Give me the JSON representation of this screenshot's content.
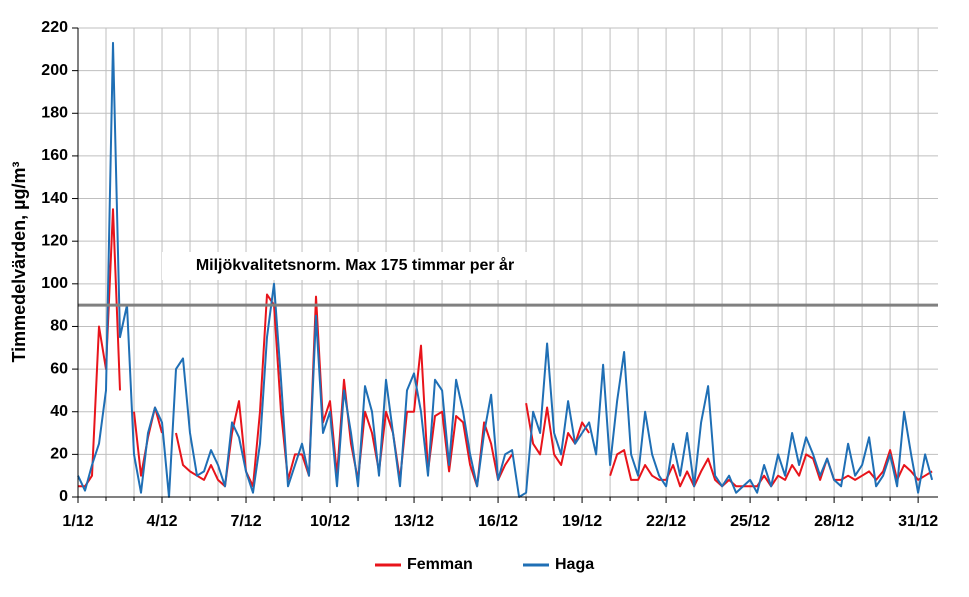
{
  "chart_data": {
    "type": "line",
    "ylabel": "Timmedelvärden, µg/m³",
    "annotation": {
      "text": "Miljökvalitetsnorm. Max 175 timmar per år",
      "value": 90,
      "color": "#808080"
    },
    "xlim": [
      1,
      31.71
    ],
    "ylim": [
      0,
      220
    ],
    "yticks": [
      0,
      20,
      40,
      60,
      80,
      100,
      120,
      140,
      160,
      180,
      200,
      220
    ],
    "xticks": [
      {
        "value": 1,
        "label": "1/12"
      },
      {
        "value": 4,
        "label": "4/12"
      },
      {
        "value": 7,
        "label": "7/12"
      },
      {
        "value": 10,
        "label": "10/12"
      },
      {
        "value": 13,
        "label": "13/12"
      },
      {
        "value": 16,
        "label": "16/12"
      },
      {
        "value": 19,
        "label": "19/12"
      },
      {
        "value": 22,
        "label": "22/12"
      },
      {
        "value": 25,
        "label": "25/12"
      },
      {
        "value": 28,
        "label": "28/12"
      },
      {
        "value": 31,
        "label": "31/12"
      }
    ],
    "xminorticks": [
      2,
      3,
      5,
      6,
      8,
      9,
      11,
      12,
      14,
      15,
      17,
      18,
      20,
      21,
      23,
      24,
      26,
      27,
      29,
      30
    ],
    "grid": true,
    "legend": "bottom",
    "x": [
      1,
      1.25,
      1.5,
      1.75,
      2,
      2.25,
      2.5,
      2.75,
      3,
      3.25,
      3.5,
      3.75,
      4,
      4.25,
      4.5,
      4.75,
      5,
      5.25,
      5.5,
      5.75,
      6,
      6.25,
      6.5,
      6.75,
      7,
      7.25,
      7.5,
      7.75,
      8,
      8.25,
      8.5,
      8.75,
      9,
      9.25,
      9.5,
      9.75,
      10,
      10.25,
      10.5,
      10.75,
      11,
      11.25,
      11.5,
      11.75,
      12,
      12.25,
      12.5,
      12.75,
      13,
      13.25,
      13.5,
      13.75,
      14,
      14.25,
      14.5,
      14.75,
      15,
      15.25,
      15.5,
      15.75,
      16,
      16.25,
      16.5,
      16.75,
      17,
      17.25,
      17.5,
      17.75,
      18,
      18.25,
      18.5,
      18.75,
      19,
      19.25,
      19.5,
      19.75,
      20,
      20.25,
      20.5,
      20.75,
      21,
      21.25,
      21.5,
      21.75,
      22,
      22.25,
      22.5,
      22.75,
      23,
      23.25,
      23.5,
      23.75,
      24,
      24.25,
      24.5,
      24.75,
      25,
      25.25,
      25.5,
      25.75,
      26,
      26.25,
      26.5,
      26.75,
      27,
      27.25,
      27.5,
      27.75,
      28,
      28.25,
      28.5,
      28.75,
      29,
      29.25,
      29.5,
      29.75,
      30,
      30.25,
      30.5,
      30.75,
      31,
      31.25,
      31.5
    ],
    "series": [
      {
        "name": "Femman",
        "color": "#e8141b",
        "values": [
          5,
          5,
          10,
          80,
          60,
          135,
          50,
          null,
          40,
          10,
          28,
          42,
          30,
          null,
          30,
          15,
          12,
          10,
          8,
          15,
          8,
          5,
          30,
          45,
          12,
          5,
          40,
          95,
          90,
          40,
          8,
          20,
          20,
          10,
          94,
          35,
          45,
          10,
          55,
          25,
          8,
          40,
          30,
          12,
          40,
          30,
          8,
          40,
          40,
          71,
          12,
          38,
          40,
          12,
          38,
          35,
          15,
          5,
          35,
          25,
          8,
          15,
          20,
          null,
          44,
          25,
          20,
          42,
          20,
          15,
          30,
          25,
          35,
          30,
          null,
          null,
          10,
          20,
          22,
          8,
          8,
          15,
          10,
          8,
          8,
          15,
          5,
          12,
          5,
          12,
          18,
          8,
          5,
          8,
          5,
          5,
          5,
          5,
          10,
          5,
          10,
          8,
          15,
          10,
          20,
          18,
          8,
          18,
          8,
          8,
          10,
          8,
          10,
          12,
          8,
          12,
          22,
          8,
          15,
          12,
          8,
          10,
          12
        ]
      },
      {
        "name": "Haga",
        "color": "#1f6fb5",
        "values": [
          10,
          3,
          15,
          25,
          50,
          213,
          75,
          90,
          20,
          2,
          30,
          42,
          35,
          0,
          60,
          65,
          30,
          10,
          12,
          22,
          15,
          5,
          35,
          28,
          12,
          2,
          25,
          75,
          100,
          55,
          5,
          15,
          25,
          10,
          85,
          30,
          40,
          5,
          50,
          30,
          5,
          52,
          40,
          10,
          55,
          30,
          5,
          50,
          58,
          40,
          10,
          55,
          50,
          15,
          55,
          40,
          20,
          5,
          30,
          48,
          8,
          20,
          22,
          0,
          2,
          40,
          30,
          72,
          30,
          20,
          45,
          25,
          30,
          35,
          20,
          62,
          15,
          45,
          68,
          20,
          10,
          40,
          20,
          10,
          5,
          25,
          10,
          30,
          5,
          35,
          52,
          10,
          5,
          10,
          2,
          5,
          8,
          2,
          15,
          5,
          20,
          10,
          30,
          15,
          28,
          20,
          10,
          18,
          8,
          5,
          25,
          10,
          15,
          28,
          5,
          10,
          20,
          5,
          40,
          20,
          2,
          20,
          8
        ]
      }
    ]
  }
}
